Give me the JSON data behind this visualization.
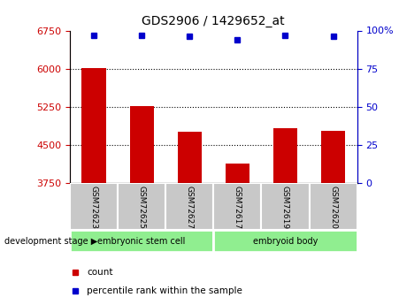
{
  "title": "GDS2906 / 1429652_at",
  "samples": [
    "GSM72623",
    "GSM72625",
    "GSM72627",
    "GSM72617",
    "GSM72619",
    "GSM72620"
  ],
  "bar_values": [
    6010,
    5270,
    4760,
    4130,
    4820,
    4770
  ],
  "percentile_values": [
    97,
    97,
    96,
    94,
    97,
    96
  ],
  "ylim_left": [
    3750,
    6750
  ],
  "ylim_right": [
    0,
    100
  ],
  "yticks_left": [
    3750,
    4500,
    5250,
    6000,
    6750
  ],
  "yticks_right": [
    0,
    25,
    50,
    75,
    100
  ],
  "grid_lines": [
    4500,
    5250,
    6000
  ],
  "bar_color": "#cc0000",
  "dot_color": "#0000cc",
  "bar_width": 0.5,
  "group1_label": "embryonic stem cell",
  "group2_label": "embryoid body",
  "group_color": "#90ee90",
  "tick_area_color": "#c8c8c8",
  "stage_label": "development stage",
  "legend_count_label": "count",
  "legend_pct_label": "percentile rank within the sample",
  "left_axis_color": "#cc0000",
  "right_axis_color": "#0000cc"
}
